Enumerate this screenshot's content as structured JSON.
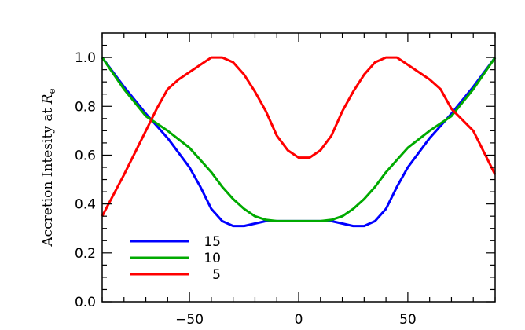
{
  "chart_data": {
    "type": "line",
    "title": "",
    "xlabel": "",
    "ylabel": "Accretion Intesity at ",
    "ylabel_symbol": "R",
    "ylabel_subscript": "e",
    "xlim": [
      -90,
      90
    ],
    "ylim": [
      0.0,
      1.1
    ],
    "xticks": [
      -50,
      0,
      50
    ],
    "xtick_labels": [
      "−50",
      "0",
      "50"
    ],
    "yticks": [
      0.0,
      0.2,
      0.4,
      0.6,
      0.8,
      1.0
    ],
    "ytick_labels": [
      "0.0",
      "0.2",
      "0.4",
      "0.6",
      "0.8",
      "1.0"
    ],
    "grid": false,
    "legend_position": "bottom-left",
    "series": [
      {
        "name": "15",
        "color": "#0000ff",
        "x": [
          -90,
          -80,
          -70,
          -60,
          -50,
          -45,
          -40,
          -35,
          -30,
          -25,
          -20,
          -15,
          -10,
          -5,
          0,
          5,
          10,
          15,
          20,
          25,
          30,
          35,
          40,
          45,
          50,
          60,
          70,
          80,
          90
        ],
        "y": [
          1.0,
          0.88,
          0.77,
          0.67,
          0.55,
          0.47,
          0.38,
          0.33,
          0.31,
          0.31,
          0.32,
          0.33,
          0.33,
          0.33,
          0.33,
          0.33,
          0.33,
          0.33,
          0.32,
          0.31,
          0.31,
          0.33,
          0.38,
          0.47,
          0.55,
          0.67,
          0.77,
          0.88,
          1.0
        ]
      },
      {
        "name": "10",
        "color": "#00aa00",
        "x": [
          -90,
          -80,
          -70,
          -60,
          -50,
          -40,
          -35,
          -30,
          -25,
          -20,
          -15,
          -10,
          -5,
          0,
          5,
          10,
          15,
          20,
          25,
          30,
          35,
          40,
          50,
          60,
          70,
          80,
          90
        ],
        "y": [
          1.0,
          0.87,
          0.76,
          0.7,
          0.63,
          0.53,
          0.47,
          0.42,
          0.38,
          0.35,
          0.335,
          0.33,
          0.33,
          0.33,
          0.33,
          0.33,
          0.335,
          0.35,
          0.38,
          0.42,
          0.47,
          0.53,
          0.63,
          0.7,
          0.76,
          0.87,
          1.0
        ]
      },
      {
        "name": "5",
        "color": "#ff0000",
        "x": [
          -90,
          -80,
          -70,
          -65,
          -60,
          -55,
          -50,
          -45,
          -40,
          -35,
          -30,
          -25,
          -20,
          -15,
          -10,
          -5,
          0,
          5,
          10,
          15,
          20,
          25,
          30,
          35,
          40,
          45,
          50,
          55,
          60,
          65,
          70,
          80,
          90
        ],
        "y": [
          0.35,
          0.52,
          0.7,
          0.79,
          0.87,
          0.91,
          0.94,
          0.97,
          1.0,
          1.0,
          0.98,
          0.93,
          0.86,
          0.78,
          0.68,
          0.62,
          0.59,
          0.59,
          0.62,
          0.68,
          0.78,
          0.86,
          0.93,
          0.98,
          1.0,
          1.0,
          0.97,
          0.94,
          0.91,
          0.87,
          0.79,
          0.7,
          0.52
        ]
      }
    ]
  }
}
